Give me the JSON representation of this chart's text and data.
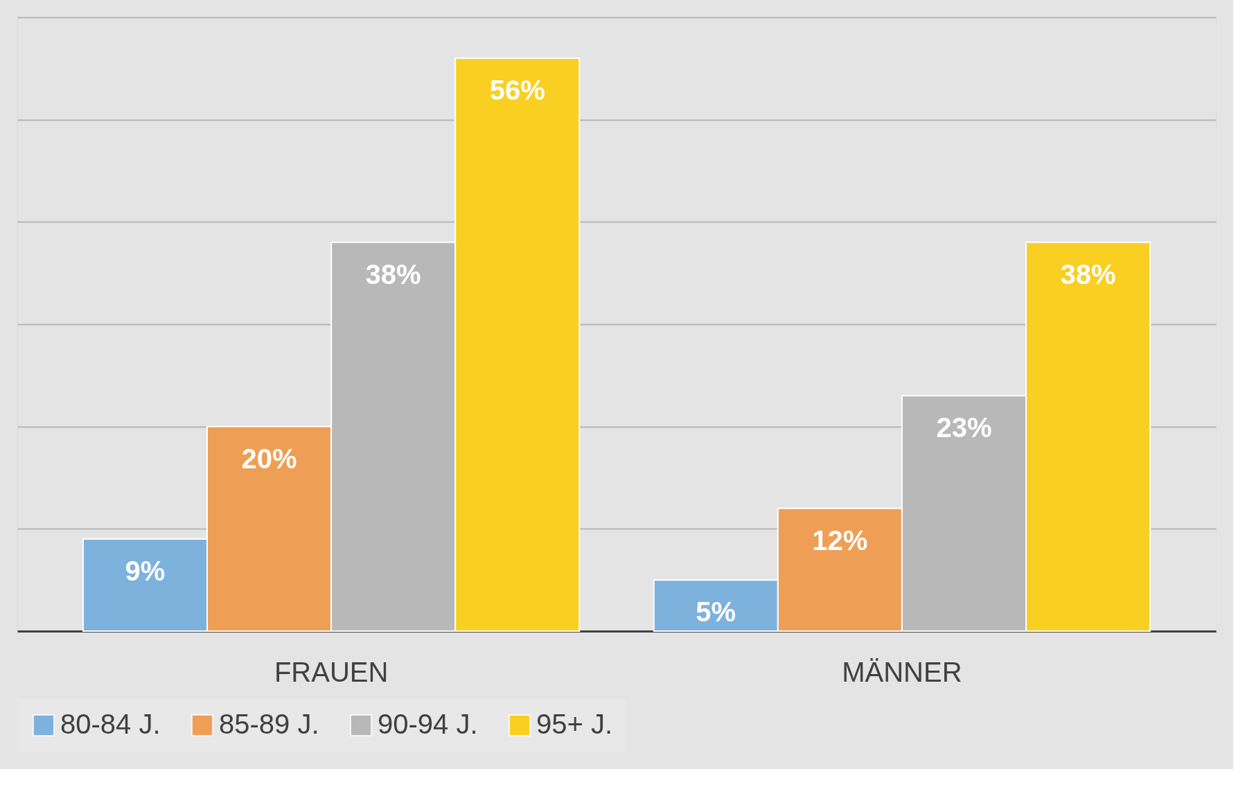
{
  "chart_data": {
    "type": "bar",
    "categories": [
      "FRAUEN",
      "MÄNNER"
    ],
    "series": [
      {
        "name": "80-84 J.",
        "color": "#7db2dd",
        "values": [
          9,
          5
        ],
        "value_labels": [
          "9%",
          "5%"
        ]
      },
      {
        "name": "85-89 J.",
        "color": "#ef9e55",
        "values": [
          20,
          12
        ],
        "value_labels": [
          "20%",
          "12%"
        ]
      },
      {
        "name": "90-94 J.",
        "color": "#b8b8b8",
        "values": [
          38,
          23
        ],
        "value_labels": [
          "38%",
          "23%"
        ]
      },
      {
        "name": "95+ J.",
        "color": "#f9cf22",
        "values": [
          56,
          38
        ],
        "value_labels": [
          "56%",
          "38%"
        ]
      }
    ],
    "ylim": [
      0,
      60
    ],
    "yticks": [
      {
        "value": 0,
        "label": null
      },
      {
        "value": 10,
        "label": null
      },
      {
        "value": 20,
        "label": null
      },
      {
        "value": 30,
        "label": null
      },
      {
        "value": 40,
        "label": null
      },
      {
        "value": 50,
        "label": null
      },
      {
        "value": 60,
        "label": null
      }
    ],
    "grid": "y",
    "tick_labels": "x",
    "legend": "bottom"
  }
}
